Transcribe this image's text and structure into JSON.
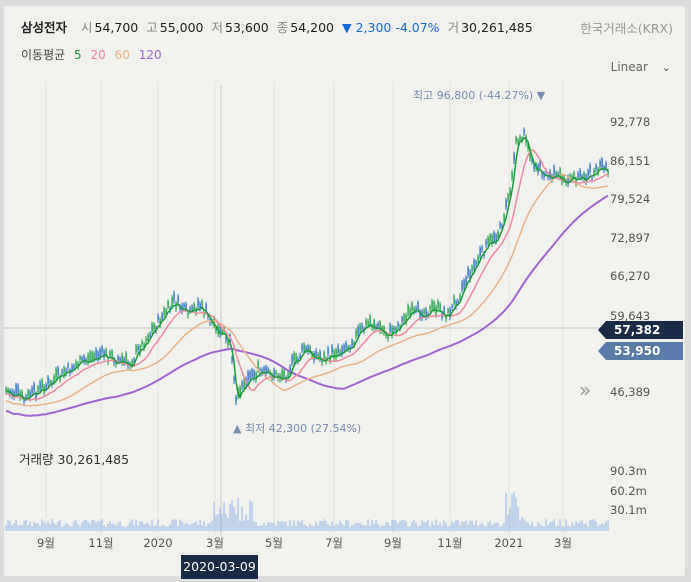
{
  "header": {
    "name": "삼성전자",
    "open_label": "시",
    "open": "54,700",
    "high_label": "고",
    "high": "55,000",
    "low_label": "저",
    "low": "53,600",
    "close_label": "종",
    "close": "54,200",
    "change": "▼ 2,300 -4.07%",
    "volume_label": "거",
    "volume": "30,261,485",
    "exchange": "한국거래소(KRX)"
  },
  "moving_average": {
    "label": "이동평균",
    "periods": [
      "5",
      "20",
      "60",
      "120"
    ],
    "colors": [
      "#1c9a3c",
      "#f08ca0",
      "#e8b48c",
      "#a066d0"
    ]
  },
  "scale": {
    "label": "Linear"
  },
  "price_axis": [
    "92,778",
    "86,151",
    "79,524",
    "72,897",
    "66,270",
    "59,643",
    "46,389"
  ],
  "tags": {
    "current": "57,382",
    "previous": "53,950"
  },
  "annotations": {
    "max": "최고 96,800 (-44.27%) ▼",
    "min": "▲ 최저 42,300 (27.54%)"
  },
  "volume": {
    "label": "거래량 30,261,485",
    "axis": [
      "90.3m",
      "60.2m",
      "30.1m"
    ]
  },
  "x_axis": [
    "9월",
    "11월",
    "2020",
    "3월",
    "5월",
    "7월",
    "9월",
    "11월",
    "2021",
    "3월"
  ],
  "crosshair_date": "2020-03-09",
  "colors": {
    "up": "#1aa046",
    "down": "#2a6fc4",
    "volume": "#a9c4e8",
    "panel": "#f0f0ec"
  }
}
